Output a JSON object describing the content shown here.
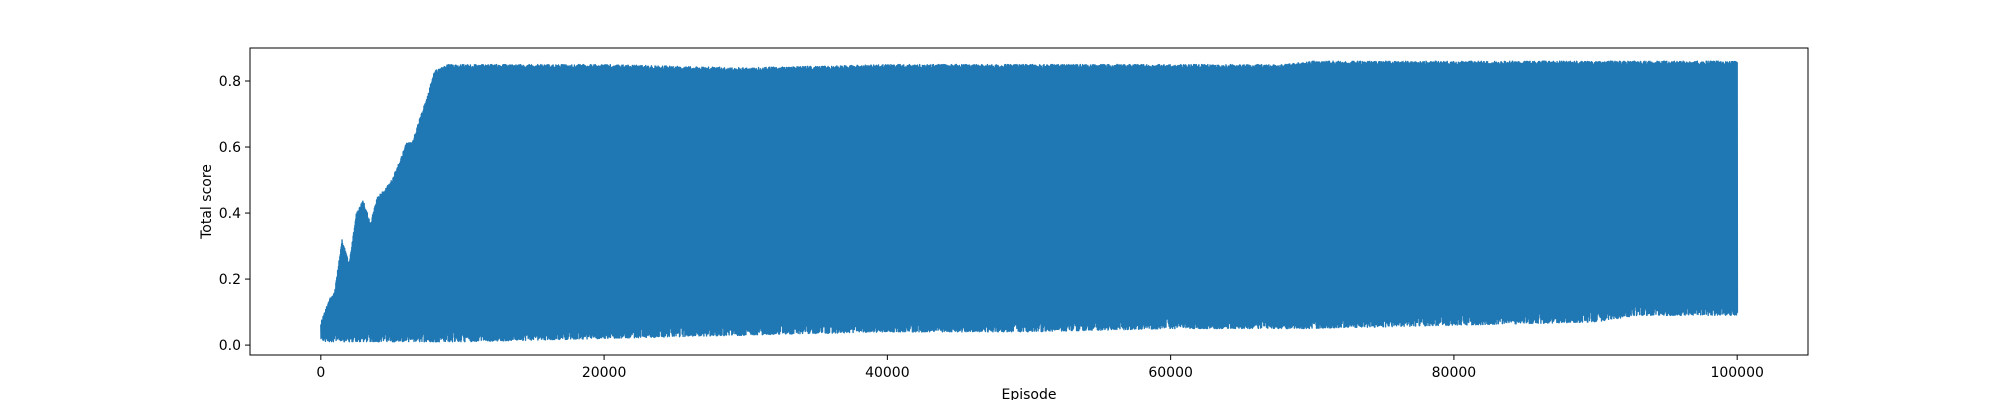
{
  "chart_data": {
    "type": "line",
    "title": "",
    "xlabel": "Episode",
    "ylabel": "Total score",
    "xlim": [
      -5000,
      105000
    ],
    "ylim": [
      -0.03,
      0.9
    ],
    "x_ticks": [
      0,
      20000,
      40000,
      60000,
      80000,
      100000
    ],
    "y_ticks": [
      0.0,
      0.2,
      0.4,
      0.6,
      0.8
    ],
    "x_tick_labels": [
      "0",
      "20000",
      "40000",
      "60000",
      "80000",
      "100000"
    ],
    "y_tick_labels": [
      "0.0",
      "0.2",
      "0.4",
      "0.6",
      "0.8"
    ],
    "grid": false,
    "legend": "none",
    "series": [
      {
        "color": "#1f77b4",
        "x_range": [
          0,
          100000
        ],
        "upper_envelope": {
          "x": [
            0,
            500,
            1000,
            1500,
            2000,
            2500,
            3000,
            3500,
            4000,
            4500,
            5000,
            5500,
            6000,
            6500,
            7000,
            7500,
            8000,
            9000,
            10000,
            20000,
            30000,
            40000,
            50000,
            60000,
            68000,
            70000,
            80000,
            90000,
            100000
          ],
          "y": [
            0.07,
            0.13,
            0.17,
            0.32,
            0.25,
            0.4,
            0.44,
            0.37,
            0.45,
            0.47,
            0.5,
            0.55,
            0.61,
            0.62,
            0.69,
            0.75,
            0.83,
            0.85,
            0.85,
            0.85,
            0.84,
            0.85,
            0.85,
            0.85,
            0.85,
            0.86,
            0.86,
            0.86,
            0.86
          ]
        },
        "lower_envelope": {
          "x": [
            0,
            5000,
            10000,
            20000,
            30000,
            40000,
            50000,
            60000,
            70000,
            80000,
            90000,
            93000,
            100000
          ],
          "y": [
            0.01,
            0.01,
            0.01,
            0.02,
            0.03,
            0.04,
            0.04,
            0.05,
            0.05,
            0.06,
            0.07,
            0.09,
            0.09
          ]
        }
      }
    ]
  }
}
